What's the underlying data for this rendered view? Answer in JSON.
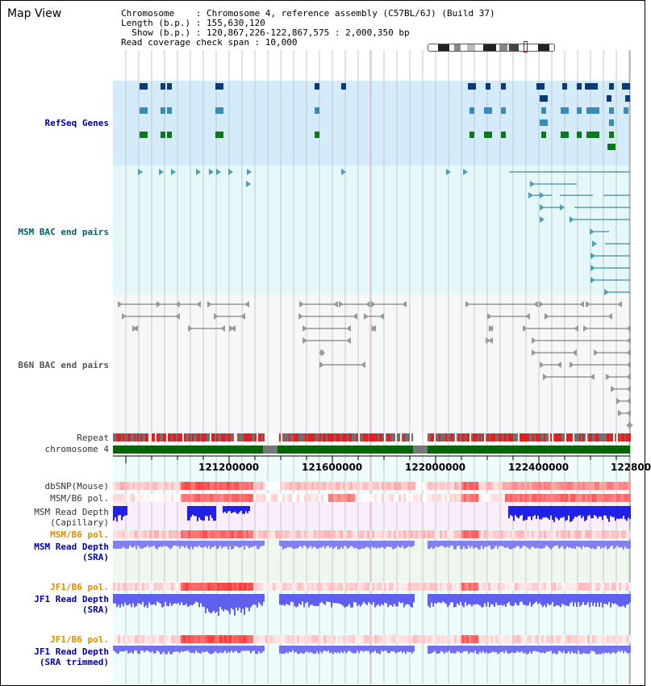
{
  "title": "Map View",
  "info": {
    "line1": "Chromosome    : Chromosome 4, reference assembly (C57BL/6J) (Build 37)",
    "line2": "Length (b.p.) : 155,630,120",
    "line3": "  Show (b.p.) : 120,867,226-122,867,575 : 2,000,350 bp",
    "line4": "Read coverage check span : 10,000"
  },
  "tracks": {
    "refseq": "RefSeq Genes",
    "msm_bac": "MSM BAC end pairs",
    "b6n_bac": "B6N BAC end pairs",
    "repeat": "Repeat",
    "chrom": "chromosome 4",
    "dbsnp": "dbSNP(Mouse)",
    "msm_pol": "MSM/B6 pol.",
    "msm_depth_cap": "MSM Read Depth\n(Capillary)",
    "msm_pol2": "MSM/B6 pol.",
    "msm_depth_sra": "MSM Read Depth\n(SRA)",
    "jf1_pol": "JF1/B6 pol.",
    "jf1_depth": "JF1 Read Depth\n(SRA)",
    "jf1_pol2": "JF1/B6 pol.",
    "jf1_depth_trim": "JF1 Read Depth\n(SRA trimmed)"
  },
  "axis": {
    "ticks": [
      "121200000",
      "121600000",
      "122000000",
      "122400000",
      "122800"
    ]
  },
  "colors": {
    "refseq_bg": "#d4ecfa",
    "msm_bac_bg": "#e4f8fa",
    "b6n_bac_bg": "#f7f7fa",
    "chrom_green": "#006600",
    "gap_grey": "#777777",
    "snp_red": "#e8302a",
    "depth_blue": "#2020e0"
  }
}
